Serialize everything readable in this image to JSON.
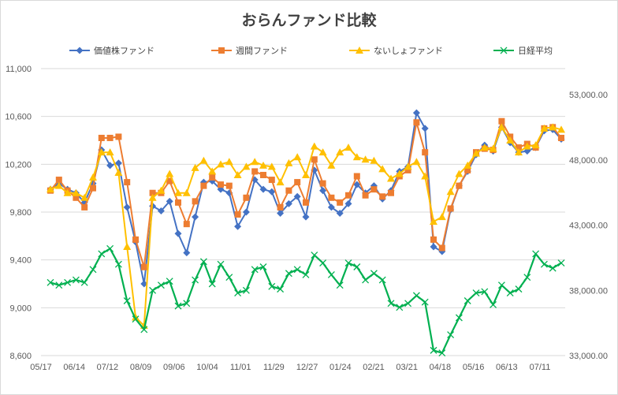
{
  "chart_data": {
    "type": "line",
    "title": "おらんファンド比較",
    "legend_position": "top",
    "grid": {
      "horizontal": true,
      "vertical": false
    },
    "x_tick_labels": [
      "05/17",
      "06/14",
      "07/12",
      "08/09",
      "09/06",
      "10/04",
      "11/01",
      "11/29",
      "12/27",
      "01/24",
      "02/21",
      "03/21",
      "04/18",
      "05/16",
      "06/13",
      "07/11"
    ],
    "y_left": {
      "min": 8600,
      "max": 11000,
      "step": 400,
      "tick_labels": [
        "8,600",
        "9,000",
        "9,400",
        "9,800",
        "10,200",
        "10,600",
        "11,000"
      ]
    },
    "y_right": {
      "min": 33000,
      "max": 55000,
      "step": 5000,
      "tick_labels": [
        "33,000.00",
        "38,000.00",
        "43,000.00",
        "48,000.00",
        "53,000.00"
      ]
    },
    "series": [
      {
        "name": "価値株ファンド",
        "color": "#4472C4",
        "marker": "diamond",
        "axis": "left",
        "values": [
          9990,
          10040,
          9990,
          9960,
          9880,
          10040,
          10320,
          10190,
          10210,
          9840,
          9550,
          9200,
          9850,
          9810,
          9890,
          9620,
          9460,
          9760,
          10050,
          10060,
          9990,
          9960,
          9680,
          9800,
          10070,
          9990,
          9970,
          9790,
          9870,
          9930,
          9760,
          10150,
          9980,
          9840,
          9790,
          9870,
          10030,
          9960,
          10020,
          9910,
          9980,
          10140,
          10180,
          10630,
          10500,
          9510,
          9470,
          9820,
          10020,
          10140,
          10280,
          10360,
          10310,
          10510,
          10380,
          10300,
          10310,
          10340,
          10480,
          10490,
          10410
        ]
      },
      {
        "name": "週間ファンド",
        "color": "#ED7D31",
        "marker": "square",
        "axis": "left",
        "values": [
          9980,
          10070,
          9980,
          9920,
          9840,
          10000,
          10420,
          10420,
          10430,
          10050,
          9570,
          9340,
          9960,
          9960,
          10060,
          9880,
          9700,
          9890,
          10020,
          10090,
          10030,
          10020,
          9780,
          9920,
          10140,
          10110,
          10070,
          9840,
          9980,
          10050,
          9880,
          10240,
          10040,
          9920,
          9880,
          9940,
          10100,
          9940,
          9990,
          9930,
          9960,
          10100,
          10150,
          10550,
          10300,
          9570,
          9500,
          9830,
          10020,
          10150,
          10300,
          10330,
          10320,
          10560,
          10430,
          10340,
          10370,
          10340,
          10500,
          10510,
          10420
        ]
      },
      {
        "name": "ないしょファンド",
        "color": "#FFC000",
        "marker": "triangle",
        "axis": "left",
        "values": [
          9990,
          10020,
          9960,
          9960,
          9920,
          10090,
          10300,
          10300,
          10130,
          9510,
          8920,
          8850,
          9920,
          9980,
          10120,
          9960,
          9960,
          10170,
          10230,
          10140,
          10200,
          10220,
          10110,
          10180,
          10220,
          10190,
          10180,
          10050,
          10210,
          10260,
          10110,
          10350,
          10300,
          10190,
          10300,
          10340,
          10260,
          10240,
          10230,
          10160,
          10080,
          10120,
          10180,
          10220,
          10100,
          9720,
          9760,
          9970,
          10120,
          10190,
          10290,
          10340,
          10330,
          10510,
          10400,
          10300,
          10350,
          10360,
          10500,
          10510,
          10490
        ]
      },
      {
        "name": "日経平均",
        "color": "#00B050",
        "marker": "x",
        "axis": "right",
        "values": [
          38600,
          38400,
          38600,
          38800,
          38600,
          39600,
          40800,
          41200,
          40000,
          37200,
          35800,
          35000,
          38000,
          38400,
          38700,
          36800,
          37000,
          38800,
          40200,
          38500,
          40000,
          39000,
          37800,
          38000,
          39600,
          39800,
          38300,
          38100,
          39300,
          39600,
          39200,
          40700,
          40100,
          39200,
          38400,
          40100,
          39800,
          38800,
          39300,
          38800,
          37000,
          36700,
          37000,
          37600,
          37100,
          33400,
          33200,
          34600,
          35900,
          37200,
          37800,
          37900,
          36900,
          38400,
          37800,
          38100,
          39000,
          40800,
          40000,
          39700,
          40100
        ]
      }
    ]
  }
}
